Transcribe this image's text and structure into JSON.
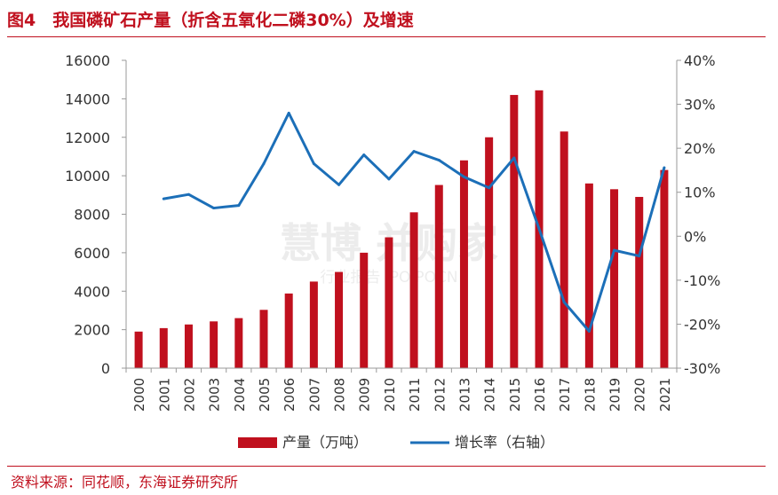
{
  "header": {
    "title": "图4　我国磷矿石产量（折含五氧化二磷30%）及增速"
  },
  "footer": {
    "source": "资料来源：同花顺，东海证券研究所"
  },
  "watermark": {
    "brand": "慧博 并购家",
    "sub": "行业报告 IPOIPOCN"
  },
  "colors": {
    "bar": "#c0101e",
    "line": "#1c6fb8",
    "title": "#c0101e",
    "axis": "#999999",
    "text": "#333333"
  },
  "chart_data": {
    "type": "bar+line",
    "categories": [
      "2000",
      "2001",
      "2002",
      "2003",
      "2004",
      "2005",
      "2006",
      "2007",
      "2008",
      "2009",
      "2010",
      "2011",
      "2012",
      "2013",
      "2014",
      "2015",
      "2016",
      "2017",
      "2018",
      "2019",
      "2020",
      "2021"
    ],
    "series": [
      {
        "name": "产量（万吨）",
        "type": "bar",
        "axis": "left",
        "values": [
          1900,
          2080,
          2270,
          2430,
          2600,
          3030,
          3880,
          4500,
          5000,
          6000,
          6800,
          8100,
          9520,
          10800,
          12000,
          14200,
          14440,
          12300,
          9600,
          9300,
          8900,
          10300
        ]
      },
      {
        "name": "增长率（右轴）",
        "type": "line",
        "axis": "right",
        "values": [
          null,
          8.5,
          9.5,
          6.4,
          7.0,
          16.5,
          28.0,
          16.5,
          11.7,
          18.5,
          13.0,
          19.3,
          17.3,
          13.5,
          11.0,
          17.8,
          1.7,
          -15.0,
          -21.6,
          -3.2,
          -4.5,
          15.6
        ]
      }
    ],
    "y_left": {
      "ticks": [
        "0",
        "2000",
        "4000",
        "6000",
        "8000",
        "10000",
        "12000",
        "14000",
        "16000"
      ],
      "range": [
        0,
        16000
      ]
    },
    "y_right": {
      "ticks": [
        "-30%",
        "-20%",
        "-10%",
        "0%",
        "10%",
        "20%",
        "30%",
        "40%"
      ],
      "range": [
        -30,
        40
      ]
    },
    "legend": [
      "产量（万吨）",
      "增长率（右轴）"
    ],
    "legend_position": "bottom",
    "grid": false
  }
}
